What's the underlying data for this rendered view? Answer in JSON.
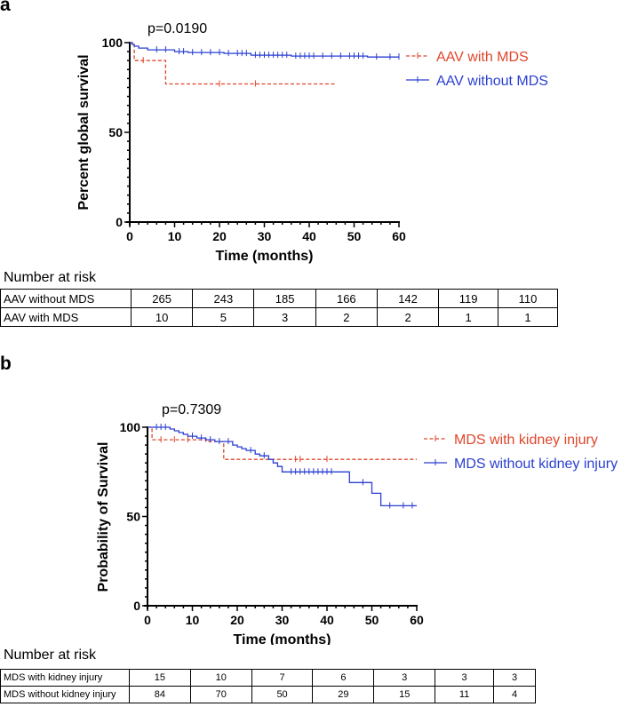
{
  "panel_a": {
    "letter": "a",
    "p_value": "p=0.0190",
    "risk_title": "Number at risk",
    "risk_rows": [
      {
        "label": "AAV without MDS",
        "values": [
          "265",
          "243",
          "185",
          "166",
          "142",
          "119",
          "110"
        ]
      },
      {
        "label": "AAV with MDS",
        "values": [
          "10",
          "5",
          "3",
          "2",
          "2",
          "1",
          "1"
        ]
      }
    ]
  },
  "panel_b": {
    "letter": "b",
    "p_value": "p=0.7309",
    "risk_title": "Number at risk",
    "risk_rows": [
      {
        "label": "MDS with kidney injury",
        "values": [
          "15",
          "10",
          "7",
          "6",
          "3",
          "3",
          "3"
        ]
      },
      {
        "label": "MDS without kidney injury",
        "values": [
          "84",
          "70",
          "50",
          "29",
          "15",
          "11",
          "4"
        ]
      }
    ]
  },
  "colors": {
    "red": "#e0462b",
    "blue": "#2a3fd1",
    "axis": "#000000"
  },
  "chart_data": [
    {
      "type": "line",
      "id": "a",
      "title": "",
      "xlabel": "Time (months)",
      "ylabel": "Percent global survival",
      "xlim": [
        0,
        60
      ],
      "ylim": [
        0,
        100
      ],
      "xticks": [
        0,
        10,
        20,
        30,
        40,
        50,
        60
      ],
      "yticks": [
        0,
        50,
        100
      ],
      "series": [
        {
          "name": "AAV with MDS",
          "color": "#e0462b",
          "dashed": true,
          "steps": [
            [
              0,
              100
            ],
            [
              1,
              100
            ],
            [
              1,
              90
            ],
            [
              8,
              90
            ],
            [
              8,
              77
            ],
            [
              46,
              77
            ]
          ],
          "censors": [
            [
              3,
              90
            ],
            [
              20,
              77
            ],
            [
              28,
              77
            ]
          ]
        },
        {
          "name": "AAV without MDS",
          "color": "#2a3fd1",
          "dashed": false,
          "steps": [
            [
              0,
              100
            ],
            [
              0.5,
              100
            ],
            [
              0.5,
              99
            ],
            [
              1,
              99
            ],
            [
              1,
              98
            ],
            [
              2,
              98
            ],
            [
              2,
              97
            ],
            [
              4,
              97
            ],
            [
              4,
              96
            ],
            [
              10,
              96
            ],
            [
              10,
              95
            ],
            [
              13,
              95
            ],
            [
              13,
              94.5
            ],
            [
              21,
              94.5
            ],
            [
              21,
              94
            ],
            [
              27,
              94
            ],
            [
              27,
              93
            ],
            [
              36,
              93
            ],
            [
              36,
              92.5
            ],
            [
              53,
              92.5
            ],
            [
              53,
              92
            ],
            [
              60,
              92
            ]
          ],
          "censors": [
            [
              6,
              96
            ],
            [
              8,
              96
            ],
            [
              11,
              95
            ],
            [
              12,
              95
            ],
            [
              14,
              94.5
            ],
            [
              16,
              94.5
            ],
            [
              18,
              94.5
            ],
            [
              20,
              94.5
            ],
            [
              22,
              94
            ],
            [
              24,
              94
            ],
            [
              25,
              94
            ],
            [
              26,
              94
            ],
            [
              28,
              93
            ],
            [
              29,
              93
            ],
            [
              30,
              93
            ],
            [
              31,
              93
            ],
            [
              32,
              93
            ],
            [
              33,
              93
            ],
            [
              34,
              93
            ],
            [
              35,
              93
            ],
            [
              37,
              92.5
            ],
            [
              38,
              92.5
            ],
            [
              39,
              92.5
            ],
            [
              40,
              92.5
            ],
            [
              41,
              92.5
            ],
            [
              43,
              92.5
            ],
            [
              45,
              92.5
            ],
            [
              47,
              92.5
            ],
            [
              49,
              92.5
            ],
            [
              50,
              92.5
            ],
            [
              51,
              92.5
            ],
            [
              52,
              92.5
            ],
            [
              55,
              92
            ],
            [
              58,
              92
            ],
            [
              60,
              92
            ]
          ]
        }
      ]
    },
    {
      "type": "line",
      "id": "b",
      "title": "",
      "xlabel": "Time (months)",
      "ylabel": "Probability of Survival",
      "xlim": [
        0,
        60
      ],
      "ylim": [
        0,
        100
      ],
      "xticks": [
        0,
        10,
        20,
        30,
        40,
        50,
        60
      ],
      "yticks": [
        0,
        50,
        100
      ],
      "series": [
        {
          "name": "MDS with kidney injury",
          "color": "#e0462b",
          "dashed": true,
          "steps": [
            [
              0,
              100
            ],
            [
              1,
              100
            ],
            [
              1,
              93
            ],
            [
              13,
              93
            ],
            [
              13,
              92
            ],
            [
              17,
              92
            ],
            [
              17,
              82
            ],
            [
              60,
              82
            ]
          ],
          "censors": [
            [
              3,
              93
            ],
            [
              6,
              93
            ],
            [
              9,
              93
            ],
            [
              33,
              82
            ],
            [
              34,
              82
            ],
            [
              40,
              82
            ]
          ]
        },
        {
          "name": "MDS without kidney injury",
          "color": "#2a3fd1",
          "dashed": false,
          "steps": [
            [
              0,
              100
            ],
            [
              5,
              100
            ],
            [
              5,
              99
            ],
            [
              6,
              99
            ],
            [
              6,
              98
            ],
            [
              7,
              98
            ],
            [
              7,
              97
            ],
            [
              8,
              97
            ],
            [
              8,
              96
            ],
            [
              9,
              96
            ],
            [
              9,
              95
            ],
            [
              11,
              95
            ],
            [
              11,
              94
            ],
            [
              13,
              94
            ],
            [
              13,
              93
            ],
            [
              15,
              93
            ],
            [
              15,
              92
            ],
            [
              19,
              92
            ],
            [
              19,
              90
            ],
            [
              20,
              90
            ],
            [
              20,
              89
            ],
            [
              21,
              89
            ],
            [
              21,
              88
            ],
            [
              22,
              88
            ],
            [
              22,
              87
            ],
            [
              24,
              87
            ],
            [
              24,
              85
            ],
            [
              25,
              85
            ],
            [
              25,
              84
            ],
            [
              27,
              84
            ],
            [
              27,
              82
            ],
            [
              28,
              82
            ],
            [
              28,
              80
            ],
            [
              29,
              80
            ],
            [
              29,
              78
            ],
            [
              30,
              78
            ],
            [
              30,
              75
            ],
            [
              45,
              75
            ],
            [
              45,
              69
            ],
            [
              50,
              69
            ],
            [
              50,
              63
            ],
            [
              52,
              63
            ],
            [
              52,
              56
            ],
            [
              60,
              56
            ]
          ],
          "censors": [
            [
              2,
              100
            ],
            [
              3,
              100
            ],
            [
              4,
              100
            ],
            [
              10,
              95
            ],
            [
              12,
              94
            ],
            [
              14,
              93
            ],
            [
              16,
              92
            ],
            [
              18,
              92
            ],
            [
              23,
              87
            ],
            [
              26,
              84
            ],
            [
              32,
              75
            ],
            [
              33,
              75
            ],
            [
              34,
              75
            ],
            [
              35,
              75
            ],
            [
              36,
              75
            ],
            [
              37,
              75
            ],
            [
              38,
              75
            ],
            [
              39,
              75
            ],
            [
              40,
              75
            ],
            [
              41,
              75
            ],
            [
              48,
              69
            ],
            [
              54,
              56
            ],
            [
              57,
              56
            ],
            [
              59,
              56
            ]
          ]
        }
      ]
    }
  ]
}
